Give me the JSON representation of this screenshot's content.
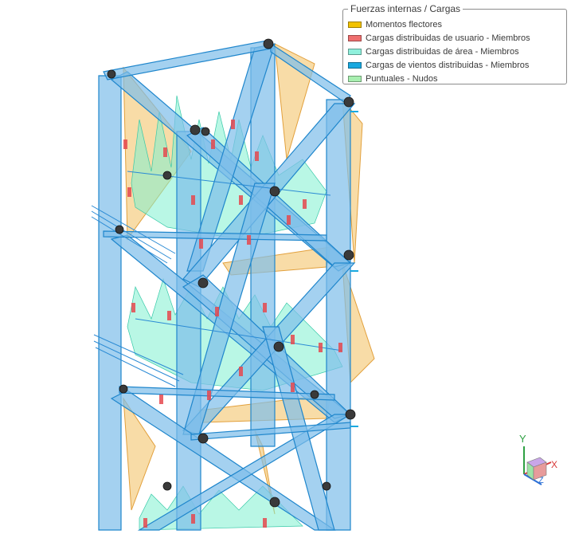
{
  "legend": {
    "title": "Fuerzas internas / Cargas",
    "items": [
      {
        "label": "Momentos flectores",
        "color": "#f2c200"
      },
      {
        "label": "Cargas distribuidas de usuario - Miembros",
        "color": "#ef6f6f"
      },
      {
        "label": "Cargas distribuidas de área - Miembros",
        "color": "#8ff0dc"
      },
      {
        "label": "Cargas de vientos distribuidas - Miembros",
        "color": "#19a9e0"
      },
      {
        "label": "Puntuales - Nudos",
        "color": "#a8efb0"
      }
    ]
  },
  "axes": {
    "y": "Y",
    "x": "X",
    "z": "Z"
  },
  "colors": {
    "member": "#3d9fe0",
    "member_fill": "#7dbde9",
    "moment": "#f3c46c",
    "area_load": "#7ff0d0",
    "user_load": "#e5484d",
    "node": "#2b2b2b"
  }
}
